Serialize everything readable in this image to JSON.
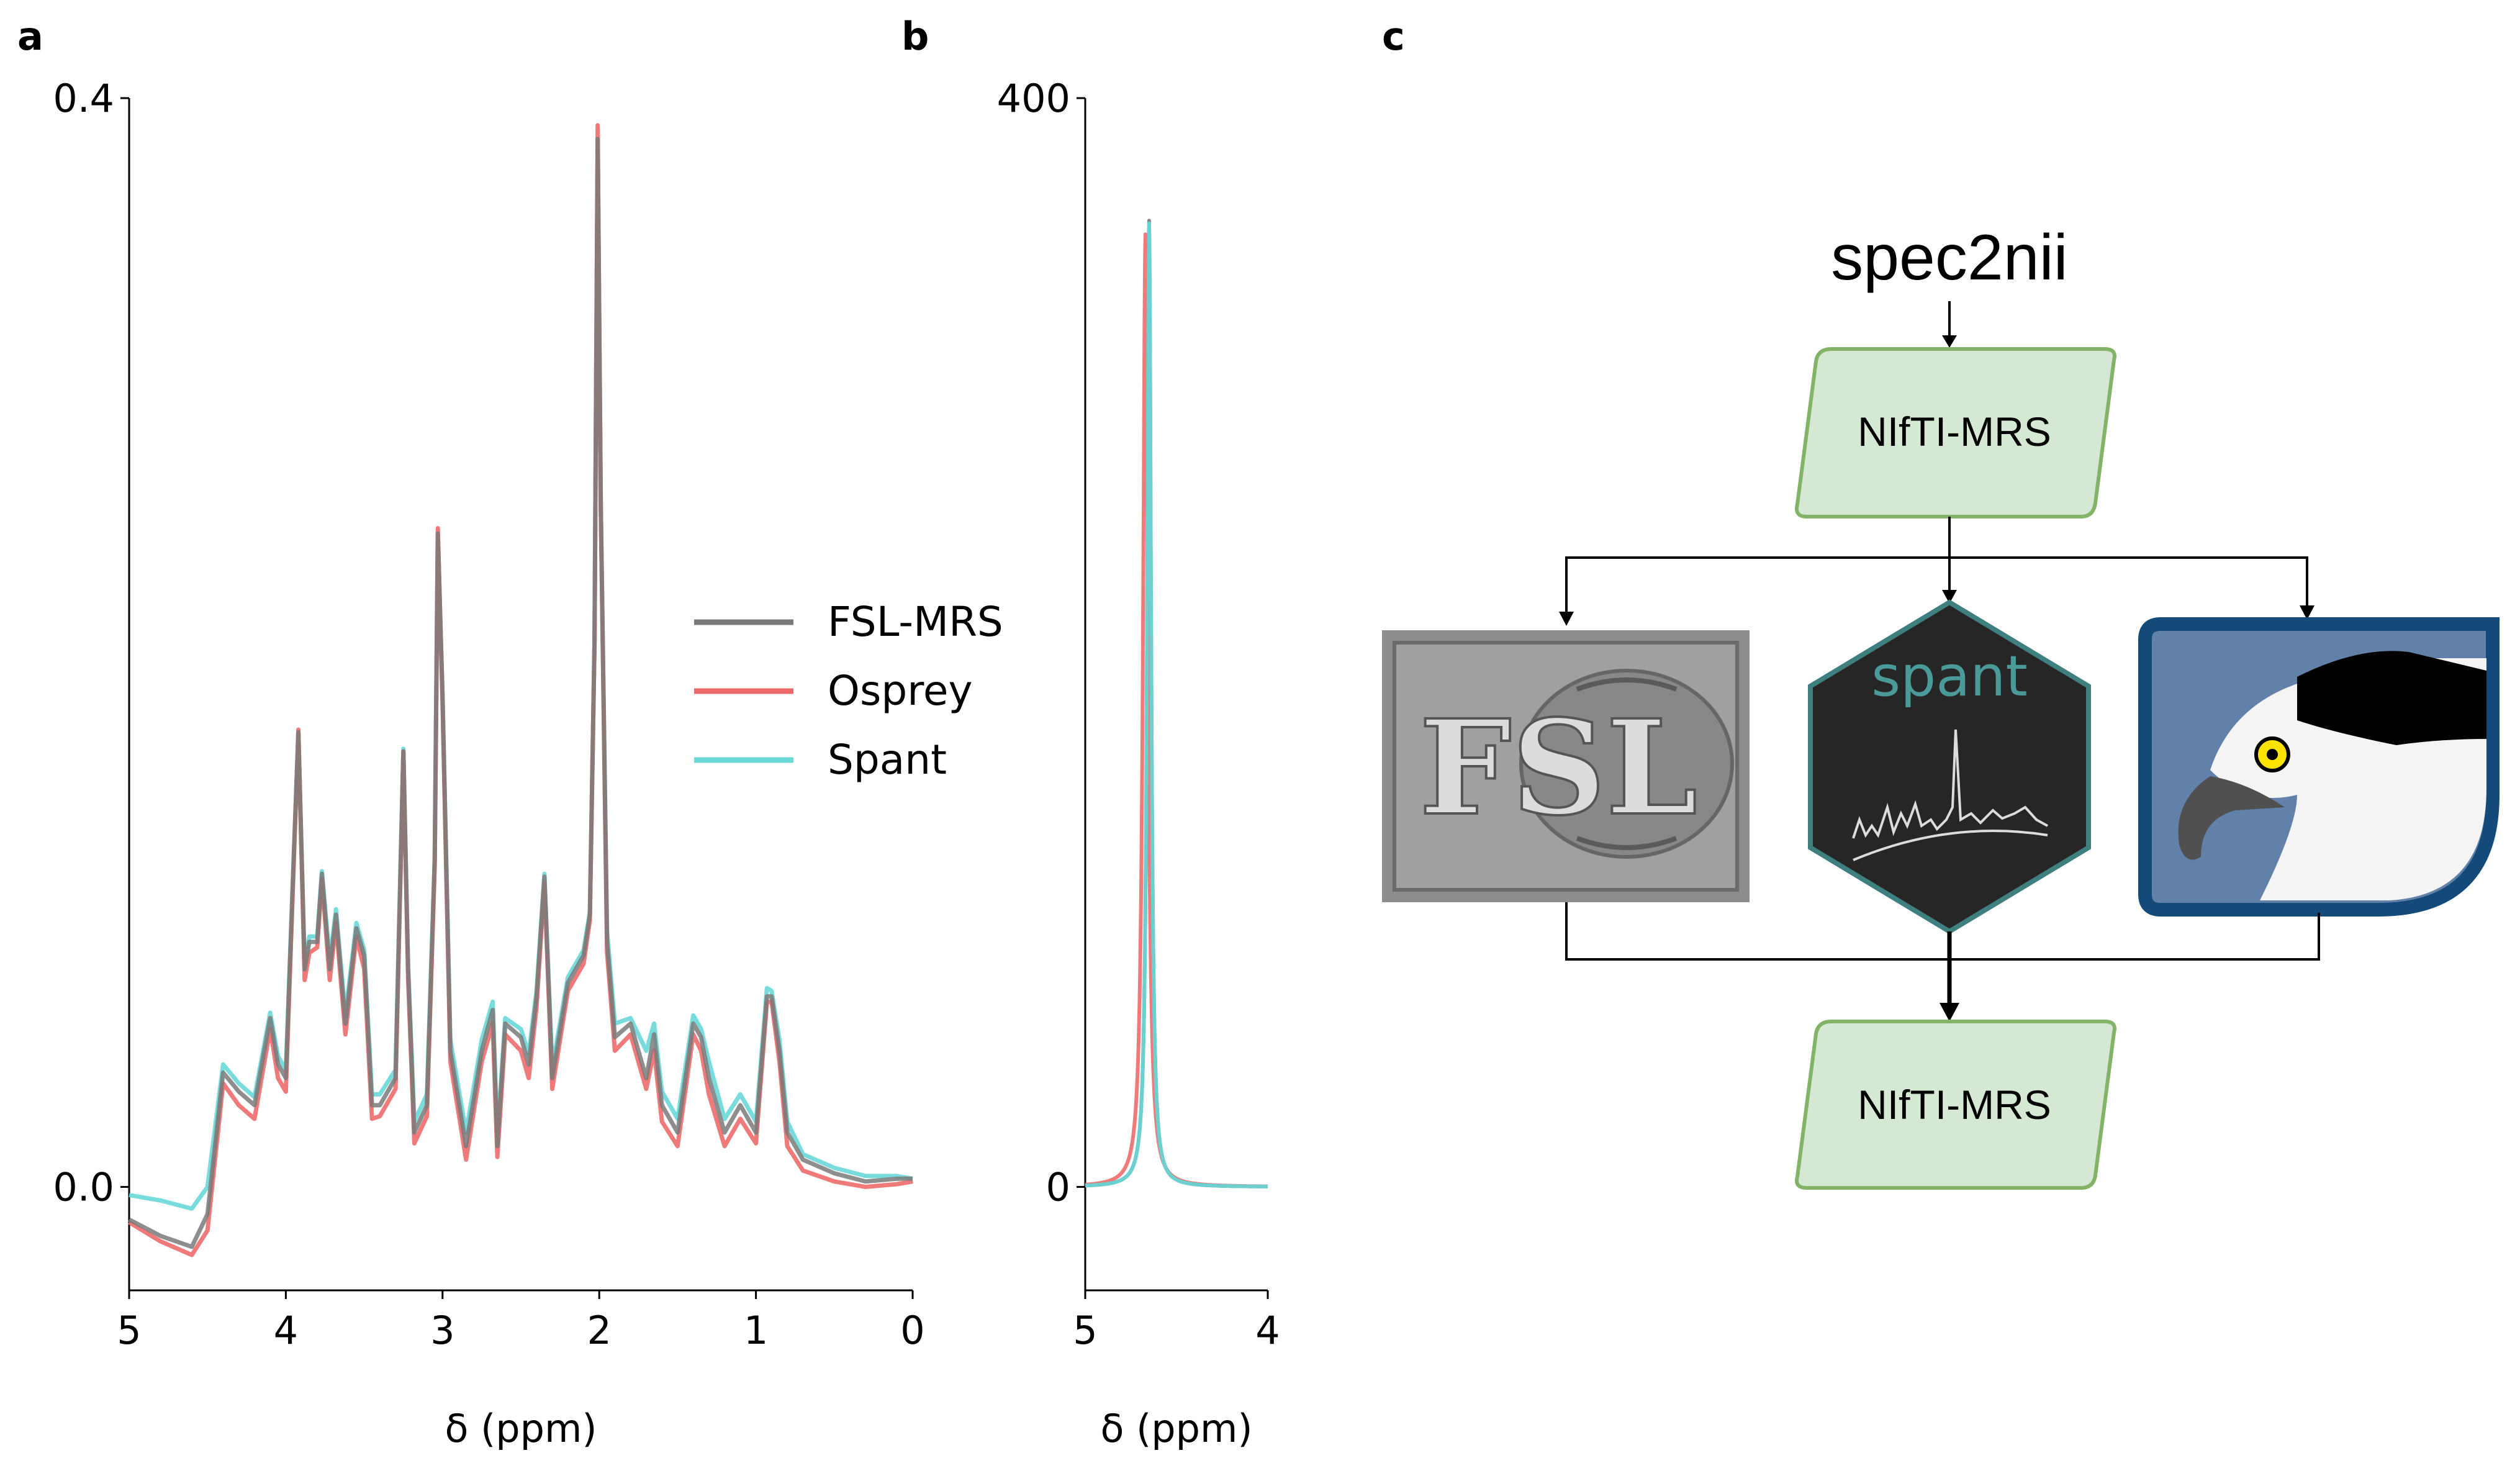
{
  "panels": {
    "a": "a",
    "b": "b",
    "c": "c"
  },
  "series_colors": {
    "FSL-MRS": "#7a7a7a",
    "Osprey": "#ee6a6a",
    "Spant": "#6ad8d8"
  },
  "chart_data": [
    {
      "type": "line",
      "panel": "a",
      "title": "",
      "xlabel": "δ (ppm)",
      "ylabel": "",
      "xlim": [
        5,
        0
      ],
      "ylim": [
        -0.038,
        0.4
      ],
      "x_reversed": true,
      "xticks": [
        5,
        4,
        3,
        2,
        1,
        0
      ],
      "xtick_labels": [
        "5",
        "4",
        "3",
        "2",
        "1",
        "0"
      ],
      "yticks": [
        0.0,
        0.4
      ],
      "ytick_labels": [
        "0.0",
        "0.4"
      ],
      "grid": false,
      "legend": {
        "placement": "center-right",
        "entries": [
          "FSL-MRS",
          "Osprey",
          "Spant"
        ]
      },
      "series": [
        {
          "name": "FSL-MRS",
          "x": [
            5.0,
            4.8,
            4.6,
            4.5,
            4.4,
            4.3,
            4.2,
            4.1,
            4.05,
            4.0,
            3.95,
            3.92,
            3.88,
            3.85,
            3.8,
            3.77,
            3.72,
            3.68,
            3.62,
            3.55,
            3.5,
            3.45,
            3.4,
            3.3,
            3.25,
            3.22,
            3.18,
            3.1,
            3.05,
            3.03,
            3.0,
            2.95,
            2.85,
            2.75,
            2.68,
            2.65,
            2.6,
            2.5,
            2.45,
            2.4,
            2.35,
            2.3,
            2.2,
            2.1,
            2.06,
            2.03,
            2.01,
            1.99,
            1.95,
            1.9,
            1.8,
            1.7,
            1.65,
            1.6,
            1.5,
            1.4,
            1.35,
            1.3,
            1.2,
            1.1,
            1.0,
            0.93,
            0.9,
            0.85,
            0.8,
            0.7,
            0.5,
            0.3,
            0.1,
            0.0
          ],
          "y": [
            -0.012,
            -0.018,
            -0.022,
            -0.01,
            0.042,
            0.035,
            0.03,
            0.062,
            0.045,
            0.04,
            0.12,
            0.167,
            0.08,
            0.09,
            0.09,
            0.115,
            0.08,
            0.1,
            0.06,
            0.095,
            0.085,
            0.03,
            0.03,
            0.04,
            0.16,
            0.08,
            0.02,
            0.03,
            0.12,
            0.24,
            0.18,
            0.05,
            0.015,
            0.05,
            0.065,
            0.015,
            0.06,
            0.055,
            0.045,
            0.07,
            0.114,
            0.04,
            0.075,
            0.085,
            0.1,
            0.2,
            0.385,
            0.25,
            0.09,
            0.055,
            0.06,
            0.04,
            0.056,
            0.03,
            0.02,
            0.06,
            0.055,
            0.04,
            0.02,
            0.03,
            0.02,
            0.07,
            0.07,
            0.05,
            0.02,
            0.01,
            0.005,
            0.002,
            0.003,
            0.003
          ]
        },
        {
          "name": "Osprey",
          "x": [
            5.0,
            4.8,
            4.6,
            4.5,
            4.4,
            4.3,
            4.2,
            4.1,
            4.05,
            4.0,
            3.95,
            3.92,
            3.88,
            3.85,
            3.8,
            3.77,
            3.72,
            3.68,
            3.62,
            3.55,
            3.5,
            3.45,
            3.4,
            3.3,
            3.25,
            3.22,
            3.18,
            3.1,
            3.05,
            3.03,
            3.0,
            2.95,
            2.85,
            2.75,
            2.68,
            2.65,
            2.6,
            2.5,
            2.45,
            2.4,
            2.35,
            2.3,
            2.2,
            2.1,
            2.06,
            2.03,
            2.01,
            1.99,
            1.95,
            1.9,
            1.8,
            1.7,
            1.65,
            1.6,
            1.5,
            1.4,
            1.35,
            1.3,
            1.2,
            1.1,
            1.0,
            0.93,
            0.9,
            0.85,
            0.8,
            0.7,
            0.5,
            0.3,
            0.1,
            0.0
          ],
          "y": [
            -0.013,
            -0.02,
            -0.025,
            -0.016,
            0.038,
            0.03,
            0.025,
            0.058,
            0.04,
            0.035,
            0.118,
            0.168,
            0.076,
            0.086,
            0.088,
            0.113,
            0.076,
            0.097,
            0.056,
            0.092,
            0.08,
            0.025,
            0.026,
            0.036,
            0.16,
            0.077,
            0.016,
            0.026,
            0.118,
            0.242,
            0.178,
            0.046,
            0.01,
            0.046,
            0.06,
            0.011,
            0.056,
            0.05,
            0.04,
            0.066,
            0.112,
            0.036,
            0.072,
            0.082,
            0.098,
            0.2,
            0.39,
            0.25,
            0.086,
            0.05,
            0.056,
            0.036,
            0.05,
            0.024,
            0.015,
            0.056,
            0.05,
            0.034,
            0.015,
            0.025,
            0.016,
            0.068,
            0.068,
            0.046,
            0.015,
            0.006,
            0.002,
            0.0,
            0.001,
            0.002
          ]
        },
        {
          "name": "Spant",
          "x": [
            5.0,
            4.8,
            4.6,
            4.5,
            4.4,
            4.3,
            4.2,
            4.1,
            4.05,
            4.0,
            3.95,
            3.92,
            3.88,
            3.85,
            3.8,
            3.77,
            3.72,
            3.68,
            3.62,
            3.55,
            3.5,
            3.45,
            3.4,
            3.3,
            3.25,
            3.22,
            3.18,
            3.1,
            3.05,
            3.03,
            3.0,
            2.95,
            2.85,
            2.75,
            2.68,
            2.65,
            2.6,
            2.5,
            2.45,
            2.4,
            2.35,
            2.3,
            2.2,
            2.1,
            2.06,
            2.03,
            2.01,
            1.99,
            1.95,
            1.9,
            1.8,
            1.7,
            1.65,
            1.6,
            1.5,
            1.4,
            1.35,
            1.3,
            1.2,
            1.1,
            1.0,
            0.93,
            0.9,
            0.85,
            0.8,
            0.7,
            0.5,
            0.3,
            0.1,
            0.0
          ],
          "y": [
            -0.003,
            -0.005,
            -0.008,
            0.0,
            0.045,
            0.038,
            0.033,
            0.064,
            0.048,
            0.043,
            0.121,
            0.166,
            0.082,
            0.092,
            0.092,
            0.116,
            0.083,
            0.102,
            0.063,
            0.097,
            0.087,
            0.034,
            0.034,
            0.043,
            0.161,
            0.082,
            0.024,
            0.034,
            0.121,
            0.238,
            0.181,
            0.054,
            0.02,
            0.054,
            0.068,
            0.019,
            0.062,
            0.058,
            0.049,
            0.072,
            0.115,
            0.044,
            0.077,
            0.087,
            0.101,
            0.2,
            0.383,
            0.25,
            0.094,
            0.06,
            0.062,
            0.05,
            0.06,
            0.035,
            0.025,
            0.063,
            0.058,
            0.046,
            0.025,
            0.034,
            0.024,
            0.073,
            0.072,
            0.054,
            0.024,
            0.012,
            0.007,
            0.004,
            0.004,
            0.003
          ]
        }
      ]
    },
    {
      "type": "line",
      "panel": "b",
      "title": "",
      "xlabel": "δ (ppm)",
      "ylabel": "",
      "xlim": [
        5,
        4
      ],
      "ylim": [
        -38,
        400
      ],
      "x_reversed": true,
      "xticks": [
        5,
        4
      ],
      "xtick_labels": [
        "5",
        "4"
      ],
      "yticks": [
        0,
        400
      ],
      "ytick_labels": [
        "0",
        "400"
      ],
      "grid": false,
      "series": [
        {
          "name": "FSL-MRS",
          "peak_x": 4.65,
          "peak_y": 355,
          "width": 0.013,
          "baseline_at_5": 2
        },
        {
          "name": "Osprey",
          "peak_x": 4.67,
          "peak_y": 350,
          "width": 0.016,
          "baseline_at_5": 3
        },
        {
          "name": "Spant",
          "peak_x": 4.65,
          "peak_y": 354,
          "width": 0.013,
          "baseline_at_5": 2
        }
      ]
    }
  ],
  "flowchart": {
    "title": "spec2nii",
    "input_node": "NIfTI-MRS",
    "output_node": "NIfTI-MRS",
    "tools": {
      "fsl": {
        "icon": "fsl-logo-icon",
        "text": "FSL"
      },
      "spant": {
        "icon": "spant-logo-icon",
        "text": "spant"
      },
      "osprey": {
        "icon": "osprey-logo-icon"
      }
    },
    "node_fill": "#d5e8d4",
    "node_stroke": "#82b366"
  }
}
